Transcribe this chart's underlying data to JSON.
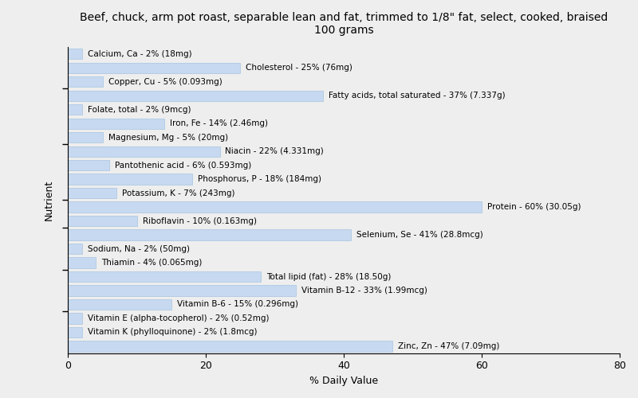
{
  "title": "Beef, chuck, arm pot roast, separable lean and fat, trimmed to 1/8\" fat, select, cooked, braised\n100 grams",
  "xlabel": "% Daily Value",
  "ylabel": "Nutrient",
  "bar_color": "#c6d9f1",
  "bar_edge_color": "#a8c4e0",
  "background_color": "#eeeeee",
  "nutrients": [
    {
      "label": "Calcium, Ca - 2% (18mg)",
      "value": 2
    },
    {
      "label": "Cholesterol - 25% (76mg)",
      "value": 25
    },
    {
      "label": "Copper, Cu - 5% (0.093mg)",
      "value": 5
    },
    {
      "label": "Fatty acids, total saturated - 37% (7.337g)",
      "value": 37
    },
    {
      "label": "Folate, total - 2% (9mcg)",
      "value": 2
    },
    {
      "label": "Iron, Fe - 14% (2.46mg)",
      "value": 14
    },
    {
      "label": "Magnesium, Mg - 5% (20mg)",
      "value": 5
    },
    {
      "label": "Niacin - 22% (4.331mg)",
      "value": 22
    },
    {
      "label": "Pantothenic acid - 6% (0.593mg)",
      "value": 6
    },
    {
      "label": "Phosphorus, P - 18% (184mg)",
      "value": 18
    },
    {
      "label": "Potassium, K - 7% (243mg)",
      "value": 7
    },
    {
      "label": "Protein - 60% (30.05g)",
      "value": 60
    },
    {
      "label": "Riboflavin - 10% (0.163mg)",
      "value": 10
    },
    {
      "label": "Selenium, Se - 41% (28.8mcg)",
      "value": 41
    },
    {
      "label": "Sodium, Na - 2% (50mg)",
      "value": 2
    },
    {
      "label": "Thiamin - 4% (0.065mg)",
      "value": 4
    },
    {
      "label": "Total lipid (fat) - 28% (18.50g)",
      "value": 28
    },
    {
      "label": "Vitamin B-12 - 33% (1.99mcg)",
      "value": 33
    },
    {
      "label": "Vitamin B-6 - 15% (0.296mg)",
      "value": 15
    },
    {
      "label": "Vitamin E (alpha-tocopherol) - 2% (0.52mg)",
      "value": 2
    },
    {
      "label": "Vitamin K (phylloquinone) - 2% (1.8mcg)",
      "value": 2
    },
    {
      "label": "Zinc, Zn - 47% (7.09mg)",
      "value": 47
    }
  ],
  "xlim": [
    0,
    80
  ],
  "xticks": [
    0,
    20,
    40,
    60,
    80
  ],
  "title_fontsize": 10,
  "label_fontsize": 7.5,
  "axis_label_fontsize": 9,
  "tick_fontsize": 9,
  "bar_height": 0.75,
  "figwidth": 8.0,
  "figheight": 5.0,
  "dpi": 100,
  "ytick_positions_orig_idx": [
    2,
    6,
    10,
    12,
    15,
    18
  ]
}
